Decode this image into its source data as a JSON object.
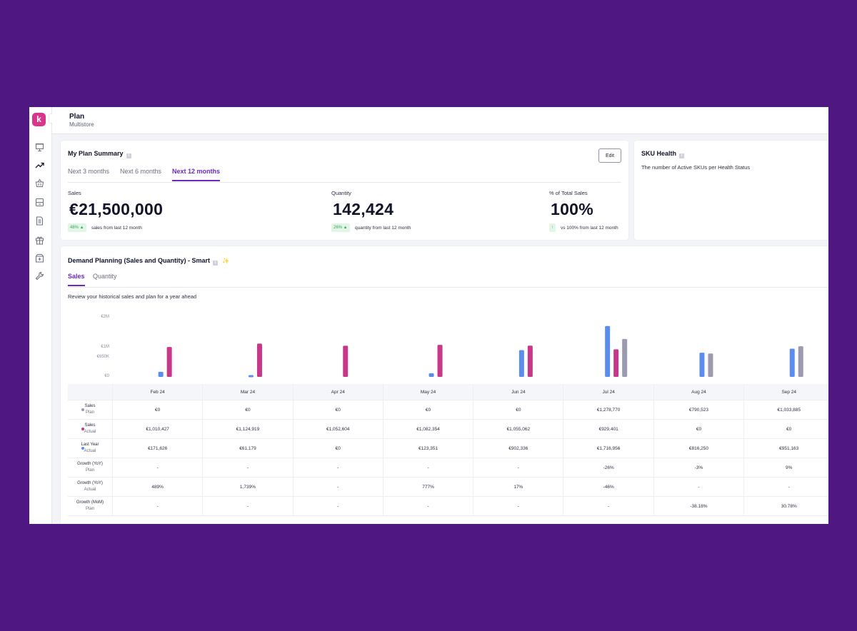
{
  "colors": {
    "accent": "#6a2bc2",
    "brand": "#d9368b",
    "plan": "#9b9aae",
    "actual": "#c7378a",
    "last_year": "#5b8def",
    "badge_bg": "#e2f6e8",
    "badge_fg": "#38a85a"
  },
  "sidebar": {
    "logo": "k",
    "expand": "›",
    "items": [
      "presentation-icon",
      "trending-up-icon",
      "basket-icon",
      "inventory-icon",
      "document-icon",
      "gift-icon",
      "box-plus-icon",
      "wrench-icon"
    ]
  },
  "header": {
    "title": "Plan",
    "subtitle": "Multistore"
  },
  "plan_summary": {
    "title": "My Plan Summary",
    "edit_label": "Edit",
    "tabs": [
      "Next 3 months",
      "Next 6 months",
      "Next 12 months"
    ],
    "active_tab": 2,
    "kpis": [
      {
        "label": "Sales",
        "value": "€21,500,000",
        "badge": "48% ▲",
        "note": "sales from last 12 month"
      },
      {
        "label": "Quantity",
        "value": "142,424",
        "badge": "26% ▲",
        "note": "quantity from last 12 month"
      },
      {
        "label": "% of Total Sales",
        "value": "100%",
        "badge": "↑",
        "note": "vs 100% from last 12 month"
      }
    ]
  },
  "sku_health": {
    "title": "SKU Health",
    "description": "The number of Active SKUs per Health Status"
  },
  "demand": {
    "title": "Demand Planning (Sales and Quantity) - Smart",
    "sparkle": "✨",
    "tabs": [
      "Sales",
      "Quantity"
    ],
    "active_tab": 0,
    "description": "Review your historical sales and plan for a year ahead"
  },
  "chart_data": {
    "type": "bar",
    "categories": [
      "Feb 24",
      "Mar 24",
      "Apr 24",
      "May 24",
      "Jun 24",
      "Jul 24",
      "Aug 24",
      "Sep 24"
    ],
    "yticks": [
      "€2M",
      "€1M",
      "€650K",
      "€0"
    ],
    "ytick_values": [
      2000000,
      1000000,
      650000,
      0
    ],
    "ylim": [
      0,
      2000000
    ],
    "series": [
      {
        "name": "Last Year Actual",
        "color": "#5b8def",
        "values": [
          171626,
          61179,
          0,
          123351,
          902336,
          1716956,
          816250,
          951163
        ]
      },
      {
        "name": "Sales Actual",
        "color": "#c7378a",
        "values": [
          1010427,
          1124919,
          1052604,
          1082354,
          1055062,
          929401,
          0,
          0
        ]
      },
      {
        "name": "Sales Plan",
        "color": "#9b9aae",
        "values": [
          0,
          0,
          0,
          0,
          0,
          1278770,
          790523,
          1033885
        ]
      }
    ]
  },
  "table": {
    "columns": [
      "Feb 24",
      "Mar 24",
      "Apr 24",
      "May 24",
      "Jun 24",
      "Jul 24",
      "Aug 24",
      "Sep 24"
    ],
    "rows": [
      {
        "l1": "Sales",
        "l2": "Plan",
        "dot": "#9b9aae",
        "cells": [
          "€0",
          "€0",
          "€0",
          "€0",
          "€0",
          "€1,278,770",
          "€790,523",
          "€1,033,885"
        ]
      },
      {
        "l1": "Sales",
        "l2": "Actual",
        "dot": "#c7378a",
        "cells": [
          "€1,010,427",
          "€1,124,919",
          "€1,052,604",
          "€1,082,354",
          "€1,055,062",
          "€929,401",
          "€0",
          "€0"
        ]
      },
      {
        "l1": "Last Year",
        "l2": "Actual",
        "dot": "#5b8def",
        "cells": [
          "€171,626",
          "€61,179",
          "€0",
          "€123,351",
          "€902,336",
          "€1,716,956",
          "€816,250",
          "€951,163"
        ]
      },
      {
        "l1": "Growth (YoY)",
        "l2": "Plan",
        "dot": "",
        "cells": [
          "-",
          "-",
          "-",
          "-",
          "-",
          "-26%",
          "-3%",
          "9%"
        ]
      },
      {
        "l1": "Growth (YoY)",
        "l2": "Actual",
        "dot": "",
        "cells": [
          "489%",
          "1,739%",
          "-",
          "777%",
          "17%",
          "-46%",
          "-",
          "-"
        ]
      },
      {
        "l1": "Growth (MoM)",
        "l2": "Plan",
        "dot": "",
        "cells": [
          "-",
          "-",
          "-",
          "-",
          "-",
          "-",
          "-38.18%",
          "30.78%"
        ]
      }
    ]
  }
}
